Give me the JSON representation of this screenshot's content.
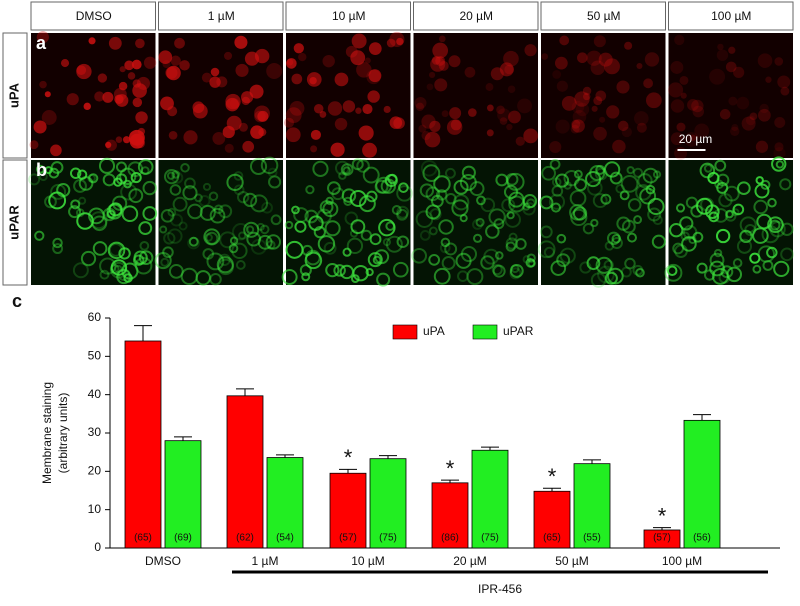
{
  "figure_panels": {
    "columns": [
      "DMSO",
      "1 µM",
      "10 µM",
      "20 µM",
      "50 µM",
      "100 µM"
    ],
    "rows": [
      {
        "letter": "a",
        "label": "uPA",
        "color": "#e0201c"
      },
      {
        "letter": "b",
        "label": "uPAR",
        "color": "#22b822"
      }
    ],
    "scale_bar": "20 µm"
  },
  "chart_data": {
    "type": "bar",
    "panel_letter": "c",
    "ylabel": [
      "Membrane staining",
      "(arbitrary units)"
    ],
    "categories": [
      "DMSO",
      "1 µM",
      "10 µM",
      "20 µM",
      "50 µM",
      "100 µM"
    ],
    "group_label": "IPR-456",
    "ylim": [
      0,
      60
    ],
    "yticks": [
      0,
      10,
      20,
      30,
      40,
      50,
      60
    ],
    "legend": "top",
    "series": [
      {
        "name": "uPA",
        "color": "#ff0000",
        "values": [
          54,
          39.7,
          19.5,
          17,
          14.8,
          4.7
        ],
        "errors": [
          4,
          1.8,
          1,
          0.7,
          0.8,
          0.6
        ],
        "n_labels": [
          "(65)",
          "(62)",
          "(57)",
          "(86)",
          "(65)",
          "(57)"
        ],
        "markers": [
          null,
          null,
          "*",
          "*",
          "*",
          "*"
        ]
      },
      {
        "name": "uPAR",
        "color": "#22ee22",
        "values": [
          28,
          23.6,
          23.3,
          25.5,
          22,
          33.3
        ],
        "errors": [
          1,
          0.7,
          0.8,
          0.8,
          1,
          1.5
        ],
        "n_labels": [
          "(69)",
          "(54)",
          "(75)",
          "(75)",
          "(55)",
          "(56)"
        ],
        "markers": [
          null,
          null,
          null,
          null,
          null,
          null
        ]
      }
    ]
  }
}
